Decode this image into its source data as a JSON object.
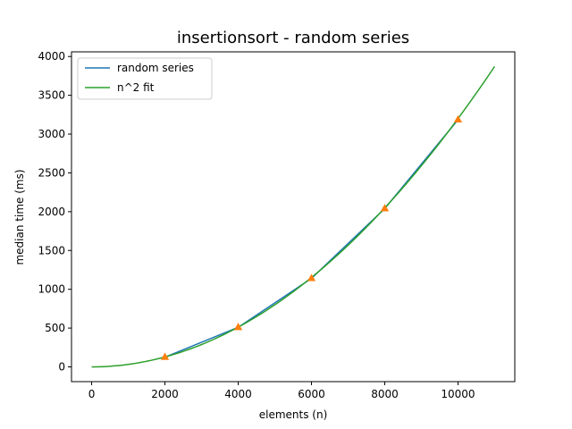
{
  "chart_data": {
    "type": "line",
    "title": "insertionsort - random series",
    "xlabel": "elements (n)",
    "ylabel": "median time (ms)",
    "xlim": [
      -550,
      11550
    ],
    "ylim": [
      -190,
      4060
    ],
    "xticks": [
      0,
      2000,
      4000,
      6000,
      8000,
      10000
    ],
    "yticks": [
      0,
      500,
      1000,
      1500,
      2000,
      2500,
      3000,
      3500,
      4000
    ],
    "grid": false,
    "legend_position": "upper-left",
    "series": [
      {
        "name": "random series",
        "color": "#1f77b4",
        "marker": "none",
        "x": [
          2000,
          4000,
          6000,
          8000,
          10000
        ],
        "y": [
          125,
          510,
          1140,
          2040,
          3185
        ]
      },
      {
        "name": "",
        "color": "#ff7f0e",
        "marker": "triangle",
        "x": [
          2000,
          4000,
          6000,
          8000,
          10000
        ],
        "y": [
          125,
          510,
          1140,
          2040,
          3185
        ]
      },
      {
        "name": "n^2 fit",
        "color": "#2ca02c",
        "marker": "none",
        "fit": "quadratic",
        "coefficient": 3.2e-05,
        "x_range": [
          0,
          11000
        ],
        "y_at_end": 3872
      }
    ]
  }
}
